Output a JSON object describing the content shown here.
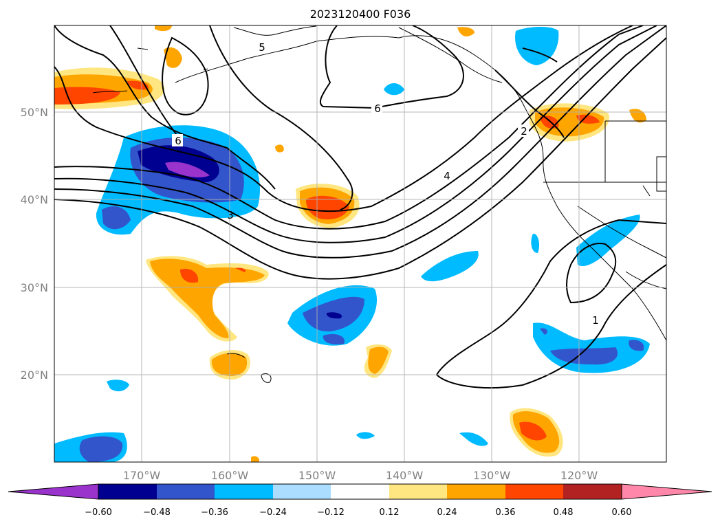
{
  "title": "2023120400 F036",
  "map": {
    "lat_ticks": [
      "50°N",
      "40°N",
      "30°N",
      "20°N"
    ],
    "lon_ticks": [
      "170°W",
      "160°W",
      "150°W",
      "140°W",
      "130°W",
      "120°W"
    ],
    "contour_labels": [
      "6",
      "6",
      "5",
      "4",
      "3",
      "2",
      "1"
    ],
    "grid": true
  },
  "colorbar": {
    "ticks": [
      "−0.60",
      "−0.48",
      "−0.36",
      "−0.24",
      "−0.12",
      "0.12",
      "0.24",
      "0.36",
      "0.48",
      "0.60"
    ],
    "colors": [
      "#9933cc",
      "#000090",
      "#3355cc",
      "#00bbff",
      "#aaddff",
      "#ffffff",
      "#ffe680",
      "#ffa500",
      "#ff4500",
      "#b22222",
      "#ff88aa"
    ],
    "extend": "both"
  }
}
